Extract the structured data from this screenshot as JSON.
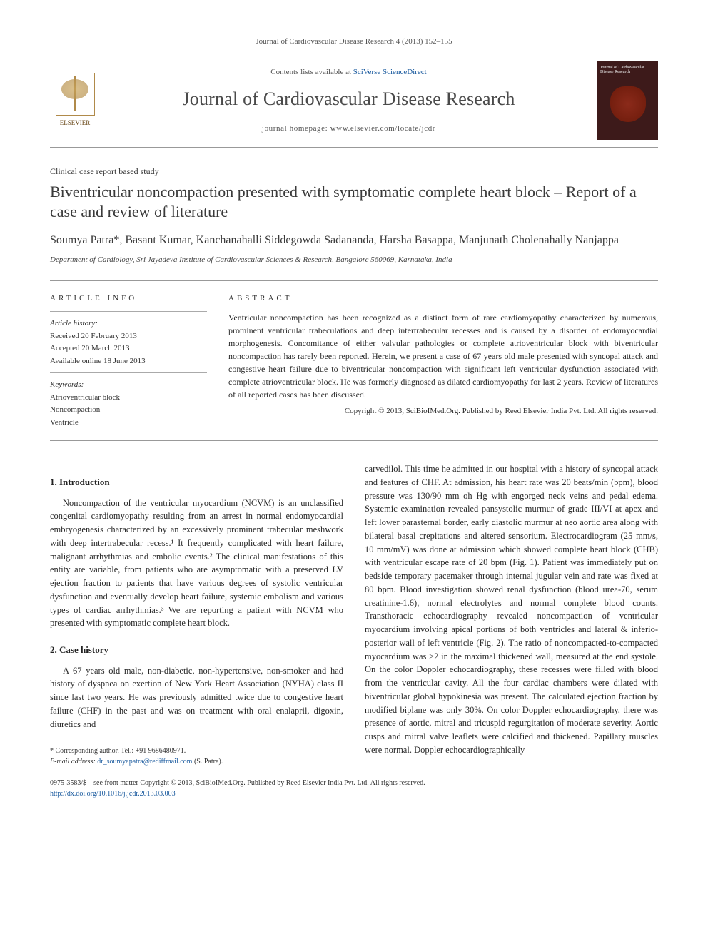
{
  "journal_ref": "Journal of Cardiovascular Disease Research 4 (2013) 152–155",
  "header": {
    "contents_prefix": "Contents lists available at ",
    "contents_link": "SciVerse ScienceDirect",
    "journal_name": "Journal of Cardiovascular Disease Research",
    "homepage_prefix": "journal homepage: ",
    "homepage_url": "www.elsevier.com/locate/jcdr",
    "publisher": "ELSEVIER",
    "cover_title": "Journal of Cardiovascular Disease Research"
  },
  "doc_type": "Clinical case report based study",
  "title": "Biventricular noncompaction presented with symptomatic complete heart block – Report of a case and review of literature",
  "authors": "Soumya Patra*, Basant Kumar, Kanchanahalli Siddegowda Sadananda, Harsha Basappa, Manjunath Cholenahally Nanjappa",
  "affiliation": "Department of Cardiology, Sri Jayadeva Institute of Cardiovascular Sciences & Research, Bangalore 560069, Karnataka, India",
  "article_info": {
    "heading": "ARTICLE INFO",
    "history_label": "Article history:",
    "received": "Received 20 February 2013",
    "accepted": "Accepted 20 March 2013",
    "online": "Available online 18 June 2013",
    "keywords_label": "Keywords:",
    "keywords": [
      "Atrioventricular block",
      "Noncompaction",
      "Ventricle"
    ]
  },
  "abstract": {
    "heading": "ABSTRACT",
    "text": "Ventricular noncompaction has been recognized as a distinct form of rare cardiomyopathy characterized by numerous, prominent ventricular trabeculations and deep intertrabecular recesses and is caused by a disorder of endomyocardial morphogenesis. Concomitance of either valvular pathologies or complete atrioventricular block with biventricular noncompaction has rarely been reported. Herein, we present a case of 67 years old male presented with syncopal attack and congestive heart failure due to biventricular noncompaction with significant left ventricular dysfunction associated with complete atrioventricular block. He was formerly diagnosed as dilated cardiomyopathy for last 2 years. Review of literatures of all reported cases has been discussed.",
    "copyright": "Copyright © 2013, SciBioIMed.Org. Published by Reed Elsevier India Pvt. Ltd. All rights reserved."
  },
  "sections": {
    "intro_heading": "1. Introduction",
    "intro_text": "Noncompaction of the ventricular myocardium (NCVM) is an unclassified congenital cardiomyopathy resulting from an arrest in normal endomyocardial embryogenesis characterized by an excessively prominent trabecular meshwork with deep intertrabecular recess.¹ It frequently complicated with heart failure, malignant arrhythmias and embolic events.² The clinical manifestations of this entity are variable, from patients who are asymptomatic with a preserved LV ejection fraction to patients that have various degrees of systolic ventricular dysfunction and eventually develop heart failure, systemic embolism and various types of cardiac arrhythmias.³ We are reporting a patient with NCVM who presented with symptomatic complete heart block.",
    "case_heading": "2. Case history",
    "case_text_1": "A 67 years old male, non-diabetic, non-hypertensive, non-smoker and had history of dyspnea on exertion of New York Heart Association (NYHA) class II since last two years. He was previously admitted twice due to congestive heart failure (CHF) in the past and was on treatment with oral enalapril, digoxin, diuretics and",
    "case_text_2": "carvedilol. This time he admitted in our hospital with a history of syncopal attack and features of CHF. At admission, his heart rate was 20 beats/min (bpm), blood pressure was 130/90 mm oh Hg with engorged neck veins and pedal edema. Systemic examination revealed pansystolic murmur of grade III/VI at apex and left lower parasternal border, early diastolic murmur at neo aortic area along with bilateral basal crepitations and altered sensorium. Electrocardiogram (25 mm/s, 10 mm/mV) was done at admission which showed complete heart block (CHB) with ventricular escape rate of 20 bpm (Fig. 1). Patient was immediately put on bedside temporary pacemaker through internal jugular vein and rate was fixed at 80 bpm. Blood investigation showed renal dysfunction (blood urea-70, serum creatinine-1.6), normal electrolytes and normal complete blood counts. Transthoracic echocardiography revealed noncompaction of ventricular myocardium involving apical portions of both ventricles and lateral & inferio-posterior wall of left ventricle (Fig. 2). The ratio of noncompacted-to-compacted myocardium was >2 in the maximal thickened wall, measured at the end systole. On the color Doppler echocardiography, these recesses were filled with blood from the ventricular cavity. All the four cardiac chambers were dilated with biventricular global hypokinesia was present. The calculated ejection fraction by modified biplane was only 30%. On color Doppler echocardiography, there was presence of aortic, mitral and tricuspid regurgitation of moderate severity. Aortic cusps and mitral valve leaflets were calcified and thickened. Papillary muscles were normal. Doppler echocardiographically"
  },
  "footnotes": {
    "corr_label": "* Corresponding author. Tel.: ",
    "corr_tel": "+91 9686480971.",
    "email_label": "E-mail address: ",
    "email": "dr_soumyapatra@rediffmail.com",
    "email_suffix": " (S. Patra)."
  },
  "bottom": {
    "line1": "0975-3583/$ – see front matter Copyright © 2013, SciBioIMed.Org. Published by Reed Elsevier India Pvt. Ltd. All rights reserved.",
    "doi": "http://dx.doi.org/10.1016/j.jcdr.2013.03.003"
  },
  "colors": {
    "link": "#1a5a9e",
    "text": "#2a2a2a",
    "rule": "#999999"
  }
}
